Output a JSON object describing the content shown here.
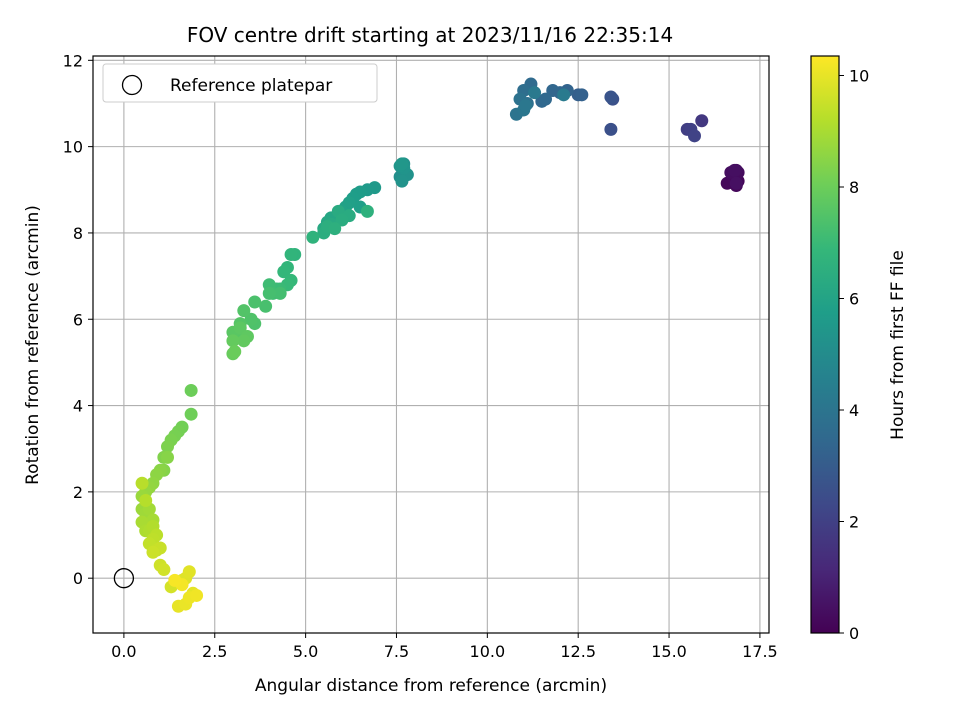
{
  "chart_data": {
    "type": "scatter",
    "title": "FOV centre drift starting at 2023/11/16 22:35:14",
    "xlabel": "Angular distance from reference (arcmin)",
    "ylabel": "Rotation from reference (arcmin)",
    "xlim": [
      -0.85,
      17.75
    ],
    "ylim": [
      -1.27,
      12.1
    ],
    "x_ticks": [
      0.0,
      2.5,
      5.0,
      7.5,
      10.0,
      12.5,
      15.0,
      17.5
    ],
    "x_tick_labels": [
      "0.0",
      "2.5",
      "5.0",
      "7.5",
      "10.0",
      "12.5",
      "15.0",
      "17.5"
    ],
    "y_ticks": [
      0,
      2,
      4,
      6,
      8,
      10,
      12
    ],
    "y_tick_labels": [
      "0",
      "2",
      "4",
      "6",
      "8",
      "10",
      "12"
    ],
    "grid": true,
    "legend": {
      "position": "upper-left",
      "entries": [
        {
          "label": "Reference platepar",
          "marker": "open-circle",
          "color": "#000000"
        }
      ]
    },
    "reference_point": {
      "x": 0.0,
      "y": 0.0
    },
    "colorbar": {
      "label": "Hours from first FF file",
      "colormap": "viridis",
      "range": [
        0,
        10.35
      ],
      "ticks": [
        0,
        2,
        4,
        6,
        8,
        10
      ],
      "tick_labels": [
        "0",
        "2",
        "4",
        "6",
        "8",
        "10"
      ],
      "colors": [
        "#440154",
        "#482878",
        "#3e4989",
        "#31688e",
        "#26828e",
        "#1f9e89",
        "#35b779",
        "#6ece58",
        "#b5de2b",
        "#fde725"
      ]
    },
    "series": [
      {
        "x": [
          16.8,
          16.9,
          16.6,
          16.85,
          16.8,
          16.75,
          16.9,
          16.85,
          16.7,
          16.8,
          16.85,
          15.9,
          15.5,
          15.6,
          15.7,
          13.4,
          13.45,
          13.4,
          12.5,
          12.6,
          12.2,
          12.0,
          11.8,
          11.5,
          11.6,
          11.2,
          11.0,
          11.1,
          10.9,
          10.8,
          11.0,
          11.05,
          11.3,
          12.1,
          7.6,
          7.7,
          7.8,
          7.65,
          7.7,
          7.6,
          7.65,
          6.9,
          6.7,
          6.5,
          6.4,
          6.3,
          6.5,
          6.2,
          6.1,
          6.0,
          5.9,
          5.8,
          5.7,
          5.6,
          5.5,
          5.7,
          5.9,
          6.2,
          6.0,
          5.5,
          5.6,
          5.8,
          6.7,
          5.2,
          4.7,
          4.6,
          4.5,
          4.4,
          4.6,
          4.5,
          4.3,
          4.2,
          4.0,
          4.1,
          4.3,
          4.0,
          3.9,
          3.6,
          3.6,
          3.5,
          3.3,
          3.2,
          3.1,
          3.0,
          3.2,
          3.4,
          3.3,
          3.0,
          3.0,
          3.05,
          1.85,
          1.85,
          1.6,
          1.5,
          1.4,
          1.3,
          1.2,
          1.1,
          1.1,
          1.2,
          1.0,
          0.9,
          0.8,
          0.7,
          0.6,
          0.5,
          0.5,
          0.6,
          0.7,
          0.8,
          0.5,
          0.6,
          0.7,
          0.8,
          0.6,
          0.5,
          0.9,
          0.8,
          0.7,
          0.9,
          1.0,
          0.8,
          1.0,
          1.1,
          1.3,
          1.5,
          1.6,
          1.7,
          1.8,
          1.9,
          1.5,
          1.7,
          1.8,
          2.0,
          1.6,
          1.4
        ],
        "y": [
          9.15,
          9.2,
          9.15,
          9.1,
          9.2,
          9.3,
          9.4,
          9.45,
          9.4,
          9.45,
          9.15,
          10.6,
          10.4,
          10.4,
          10.25,
          10.4,
          11.1,
          11.15,
          11.2,
          11.2,
          11.3,
          11.25,
          11.3,
          11.05,
          11.1,
          11.45,
          11.3,
          11.0,
          11.1,
          10.75,
          10.85,
          10.95,
          11.25,
          11.2,
          9.3,
          9.6,
          9.35,
          9.2,
          9.5,
          9.55,
          9.6,
          9.05,
          9.0,
          8.95,
          8.9,
          8.8,
          8.6,
          8.7,
          8.6,
          8.5,
          8.4,
          8.3,
          8.35,
          8.25,
          8.1,
          8.2,
          8.5,
          8.4,
          8.3,
          8.0,
          8.15,
          8.1,
          8.5,
          7.9,
          7.5,
          7.5,
          7.2,
          7.1,
          6.9,
          6.8,
          6.7,
          6.7,
          6.8,
          6.6,
          6.6,
          6.6,
          6.3,
          6.4,
          5.9,
          6.0,
          6.2,
          5.9,
          5.7,
          5.7,
          5.8,
          5.6,
          5.5,
          5.5,
          5.2,
          5.25,
          4.35,
          3.8,
          3.5,
          3.4,
          3.3,
          3.2,
          3.05,
          2.8,
          2.5,
          2.8,
          2.5,
          2.4,
          2.2,
          2.1,
          2.0,
          1.9,
          1.6,
          1.5,
          1.6,
          1.35,
          1.3,
          1.1,
          1.1,
          1.2,
          1.8,
          2.2,
          1.0,
          0.9,
          0.8,
          0.65,
          0.7,
          0.6,
          0.3,
          0.2,
          -0.2,
          -0.1,
          -0.05,
          0.0,
          0.15,
          -0.35,
          -0.65,
          -0.6,
          -0.45,
          -0.4,
          -0.15,
          -0.05
        ],
        "hours": [
          0.15,
          0.15,
          0.2,
          0.2,
          0.25,
          0.25,
          0.3,
          0.35,
          0.35,
          0.4,
          0.45,
          1.7,
          1.9,
          2.0,
          2.1,
          2.55,
          2.6,
          2.7,
          3.1,
          3.2,
          3.3,
          3.35,
          3.4,
          3.45,
          3.5,
          3.6,
          3.7,
          3.8,
          3.9,
          4.0,
          4.05,
          4.1,
          4.2,
          4.25,
          5.15,
          5.2,
          5.25,
          5.3,
          5.35,
          5.4,
          5.45,
          5.55,
          5.6,
          5.65,
          5.7,
          5.75,
          5.8,
          5.85,
          5.9,
          5.95,
          6.0,
          6.05,
          6.1,
          6.15,
          6.2,
          6.25,
          6.3,
          6.35,
          6.4,
          6.45,
          6.5,
          6.55,
          6.6,
          6.65,
          6.7,
          6.75,
          6.8,
          6.85,
          6.9,
          6.95,
          7.0,
          7.05,
          7.1,
          7.15,
          7.2,
          7.25,
          7.3,
          7.35,
          7.4,
          7.45,
          7.5,
          7.55,
          7.6,
          7.65,
          7.7,
          7.75,
          7.8,
          7.85,
          7.9,
          7.95,
          8.0,
          8.05,
          8.1,
          8.15,
          8.2,
          8.25,
          8.3,
          8.35,
          8.4,
          8.45,
          8.5,
          8.55,
          8.6,
          8.65,
          8.7,
          8.75,
          8.8,
          8.85,
          8.9,
          8.95,
          9.0,
          9.05,
          9.1,
          9.15,
          9.2,
          9.25,
          9.3,
          9.35,
          9.4,
          9.45,
          9.5,
          9.55,
          9.6,
          9.65,
          9.7,
          9.75,
          9.8,
          9.85,
          9.9,
          9.95,
          10.0,
          10.05,
          10.1,
          10.15,
          10.2,
          10.25
        ]
      }
    ]
  }
}
